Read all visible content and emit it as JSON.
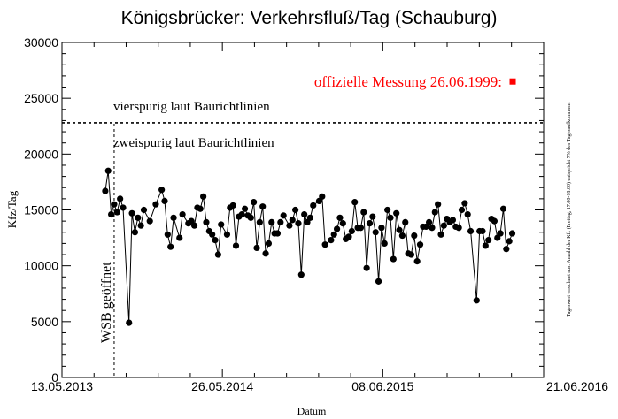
{
  "chart_data": {
    "type": "line",
    "title": "Königsbrücker: Verkehrsfluß/Tag (Schauburg)",
    "xlabel": "Datum",
    "ylabel": "Kfz/Tag",
    "xlim": [
      "2013-05-13",
      "2016-06-21"
    ],
    "ylim": [
      0,
      30000
    ],
    "x_ticks": [
      {
        "date": "2013-05-13",
        "label": "13.05.2013"
      },
      {
        "date": "2014-05-26",
        "label": "26.05.2014"
      },
      {
        "date": "2015-06-08",
        "label": "08.06.2015"
      },
      {
        "date": "2016-06-21",
        "label": "21.06.2016"
      }
    ],
    "y_ticks": [
      0,
      5000,
      10000,
      15000,
      20000,
      25000,
      30000
    ],
    "side_note": "Tageswert errechnet aus: Anzahl der Kfz (Freitag, 17:00-18:00) entspricht 7% des Tagesaufkommens",
    "reference_lines": [
      {
        "name": "vierspurig",
        "y": 22800,
        "label": "vierspurig laut Baurichtlinien",
        "color": "#000000"
      }
    ],
    "annotations": [
      {
        "name": "zweispurig",
        "text": "zweispurig laut Baurichtlinien"
      }
    ],
    "event": {
      "date": "2013-09-13",
      "label": "WSB geöffnet"
    },
    "official_measurement": {
      "date": "2016-04-09",
      "value": 26500,
      "label": "offizielle Messung 26.06.1999:",
      "color": "#ff0000"
    },
    "series": [
      {
        "color": "#000000",
        "points": [
          {
            "x": "2013-08-23",
            "y": 16700
          },
          {
            "x": "2013-08-30",
            "y": 18500
          },
          {
            "x": "2013-09-06",
            "y": 14600
          },
          {
            "x": "2013-09-13",
            "y": 15500
          },
          {
            "x": "2013-09-20",
            "y": 14800
          },
          {
            "x": "2013-09-27",
            "y": 16000
          },
          {
            "x": "2013-10-04",
            "y": 15200
          },
          {
            "x": "2013-10-18",
            "y": 4900
          },
          {
            "x": "2013-10-25",
            "y": 14700
          },
          {
            "x": "2013-11-01",
            "y": 13000
          },
          {
            "x": "2013-11-08",
            "y": 14300
          },
          {
            "x": "2013-11-15",
            "y": 13600
          },
          {
            "x": "2013-11-22",
            "y": 15000
          },
          {
            "x": "2013-12-06",
            "y": 14000
          },
          {
            "x": "2013-12-20",
            "y": 15500
          },
          {
            "x": "2014-01-03",
            "y": 16800
          },
          {
            "x": "2014-01-10",
            "y": 15800
          },
          {
            "x": "2014-01-17",
            "y": 12800
          },
          {
            "x": "2014-01-24",
            "y": 11700
          },
          {
            "x": "2014-01-31",
            "y": 14300
          },
          {
            "x": "2014-02-14",
            "y": 12500
          },
          {
            "x": "2014-02-21",
            "y": 14600
          },
          {
            "x": "2014-03-07",
            "y": 13800
          },
          {
            "x": "2014-03-14",
            "y": 14000
          },
          {
            "x": "2014-03-21",
            "y": 13600
          },
          {
            "x": "2014-03-28",
            "y": 15200
          },
          {
            "x": "2014-04-04",
            "y": 15100
          },
          {
            "x": "2014-04-11",
            "y": 16200
          },
          {
            "x": "2014-04-18",
            "y": 13900
          },
          {
            "x": "2014-04-25",
            "y": 13100
          },
          {
            "x": "2014-05-02",
            "y": 12800
          },
          {
            "x": "2014-05-09",
            "y": 12300
          },
          {
            "x": "2014-05-16",
            "y": 11000
          },
          {
            "x": "2014-05-23",
            "y": 13700
          },
          {
            "x": "2014-06-06",
            "y": 12800
          },
          {
            "x": "2014-06-13",
            "y": 15200
          },
          {
            "x": "2014-06-20",
            "y": 15400
          },
          {
            "x": "2014-06-27",
            "y": 11800
          },
          {
            "x": "2014-07-04",
            "y": 14400
          },
          {
            "x": "2014-07-11",
            "y": 14600
          },
          {
            "x": "2014-07-18",
            "y": 15100
          },
          {
            "x": "2014-07-25",
            "y": 14500
          },
          {
            "x": "2014-08-01",
            "y": 14300
          },
          {
            "x": "2014-08-08",
            "y": 15700
          },
          {
            "x": "2014-08-15",
            "y": 11600
          },
          {
            "x": "2014-08-22",
            "y": 13900
          },
          {
            "x": "2014-08-29",
            "y": 15300
          },
          {
            "x": "2014-09-05",
            "y": 11100
          },
          {
            "x": "2014-09-12",
            "y": 12000
          },
          {
            "x": "2014-09-19",
            "y": 13900
          },
          {
            "x": "2014-09-26",
            "y": 12900
          },
          {
            "x": "2014-10-03",
            "y": 12900
          },
          {
            "x": "2014-10-10",
            "y": 13900
          },
          {
            "x": "2014-10-17",
            "y": 14500
          },
          {
            "x": "2014-10-31",
            "y": 13600
          },
          {
            "x": "2014-11-07",
            "y": 14100
          },
          {
            "x": "2014-11-14",
            "y": 15000
          },
          {
            "x": "2014-11-21",
            "y": 13800
          },
          {
            "x": "2014-11-28",
            "y": 9200
          },
          {
            "x": "2014-12-05",
            "y": 14600
          },
          {
            "x": "2014-12-12",
            "y": 13900
          },
          {
            "x": "2014-12-19",
            "y": 14300
          },
          {
            "x": "2014-12-26",
            "y": 15400
          },
          {
            "x": "2015-01-09",
            "y": 15800
          },
          {
            "x": "2015-01-16",
            "y": 16200
          },
          {
            "x": "2015-01-23",
            "y": 11900
          },
          {
            "x": "2015-02-06",
            "y": 12300
          },
          {
            "x": "2015-02-13",
            "y": 12800
          },
          {
            "x": "2015-02-20",
            "y": 13300
          },
          {
            "x": "2015-02-27",
            "y": 14300
          },
          {
            "x": "2015-03-06",
            "y": 13800
          },
          {
            "x": "2015-03-13",
            "y": 12400
          },
          {
            "x": "2015-03-20",
            "y": 12600
          },
          {
            "x": "2015-03-27",
            "y": 13100
          },
          {
            "x": "2015-04-03",
            "y": 15700
          },
          {
            "x": "2015-04-10",
            "y": 13400
          },
          {
            "x": "2015-04-17",
            "y": 13400
          },
          {
            "x": "2015-04-24",
            "y": 14800
          },
          {
            "x": "2015-05-01",
            "y": 9800
          },
          {
            "x": "2015-05-08",
            "y": 13800
          },
          {
            "x": "2015-05-15",
            "y": 14400
          },
          {
            "x": "2015-05-22",
            "y": 13000
          },
          {
            "x": "2015-05-29",
            "y": 8600
          },
          {
            "x": "2015-06-05",
            "y": 13400
          },
          {
            "x": "2015-06-12",
            "y": 12000
          },
          {
            "x": "2015-06-19",
            "y": 15000
          },
          {
            "x": "2015-06-26",
            "y": 14300
          },
          {
            "x": "2015-07-03",
            "y": 10600
          },
          {
            "x": "2015-07-10",
            "y": 14700
          },
          {
            "x": "2015-07-17",
            "y": 13200
          },
          {
            "x": "2015-07-24",
            "y": 12700
          },
          {
            "x": "2015-07-31",
            "y": 13900
          },
          {
            "x": "2015-08-07",
            "y": 11100
          },
          {
            "x": "2015-08-14",
            "y": 11000
          },
          {
            "x": "2015-08-21",
            "y": 12700
          },
          {
            "x": "2015-08-28",
            "y": 10400
          },
          {
            "x": "2015-09-04",
            "y": 11900
          },
          {
            "x": "2015-09-11",
            "y": 13500
          },
          {
            "x": "2015-09-18",
            "y": 13500
          },
          {
            "x": "2015-09-25",
            "y": 13900
          },
          {
            "x": "2015-10-02",
            "y": 13400
          },
          {
            "x": "2015-10-09",
            "y": 14800
          },
          {
            "x": "2015-10-16",
            "y": 15500
          },
          {
            "x": "2015-10-23",
            "y": 12800
          },
          {
            "x": "2015-10-30",
            "y": 13600
          },
          {
            "x": "2015-11-06",
            "y": 14200
          },
          {
            "x": "2015-11-13",
            "y": 13900
          },
          {
            "x": "2015-11-20",
            "y": 14100
          },
          {
            "x": "2015-11-27",
            "y": 13500
          },
          {
            "x": "2015-12-04",
            "y": 13400
          },
          {
            "x": "2015-12-11",
            "y": 15000
          },
          {
            "x": "2015-12-18",
            "y": 15600
          },
          {
            "x": "2015-12-25",
            "y": 14600
          },
          {
            "x": "2016-01-01",
            "y": 13100
          },
          {
            "x": "2016-01-15",
            "y": 6900
          },
          {
            "x": "2016-01-22",
            "y": 13100
          },
          {
            "x": "2016-01-29",
            "y": 13100
          },
          {
            "x": "2016-02-05",
            "y": 11800
          },
          {
            "x": "2016-02-12",
            "y": 12300
          },
          {
            "x": "2016-02-19",
            "y": 14200
          },
          {
            "x": "2016-02-26",
            "y": 14000
          },
          {
            "x": "2016-03-04",
            "y": 12500
          },
          {
            "x": "2016-03-11",
            "y": 12900
          },
          {
            "x": "2016-03-18",
            "y": 15100
          },
          {
            "x": "2016-03-25",
            "y": 11500
          },
          {
            "x": "2016-04-01",
            "y": 12200
          },
          {
            "x": "2016-04-08",
            "y": 12900
          }
        ]
      }
    ]
  }
}
